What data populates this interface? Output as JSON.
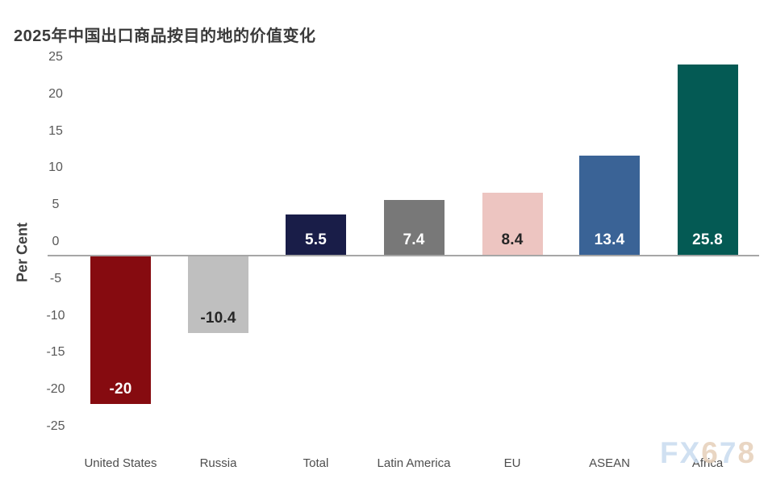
{
  "title": "2025年中国出口商品按目的地的价值变化",
  "chart_data": {
    "type": "bar",
    "title": "2025年中国出口商品按目的地的价值变化",
    "ylabel": "Per Cent",
    "xlabel": "",
    "ylim": [
      -25,
      25
    ],
    "yticks": [
      25,
      20,
      15,
      10,
      5,
      0,
      -5,
      -10,
      -15,
      -20,
      -25
    ],
    "grid": false,
    "legend": "none",
    "categories": [
      "United States",
      "Russia",
      "Total",
      "Latin America",
      "EU",
      "ASEAN",
      "Africa"
    ],
    "values": [
      -20,
      -10.4,
      5.5,
      7.4,
      8.4,
      13.4,
      25.8
    ],
    "value_labels": [
      "-20",
      "-10.4",
      "5.5",
      "7.4",
      "8.4",
      "13.4",
      "25.8"
    ],
    "bar_colors": [
      "#860B10",
      "#BFBFBF",
      "#191D48",
      "#787878",
      "#EDC5C1",
      "#3A6396",
      "#045A54"
    ],
    "value_label_colors": [
      "#FFFFFF",
      "#262626",
      "#FFFFFF",
      "#FFFFFF",
      "#262626",
      "#FFFFFF",
      "#FFFFFF"
    ]
  },
  "axis_colors": {
    "zero_line": "#A6A6A6",
    "tick_label": "#595959",
    "category_label": "#4D4D4D"
  },
  "watermark": {
    "text": "FX678",
    "letters": [
      {
        "ch": "F",
        "color": "#C8DBEF"
      },
      {
        "ch": "X",
        "color": "#C8DBEF"
      },
      {
        "ch": "6",
        "color": "#E6CFB9"
      },
      {
        "ch": "7",
        "color": "#C8DBEF"
      },
      {
        "ch": "8",
        "color": "#E6CFB9"
      }
    ]
  }
}
